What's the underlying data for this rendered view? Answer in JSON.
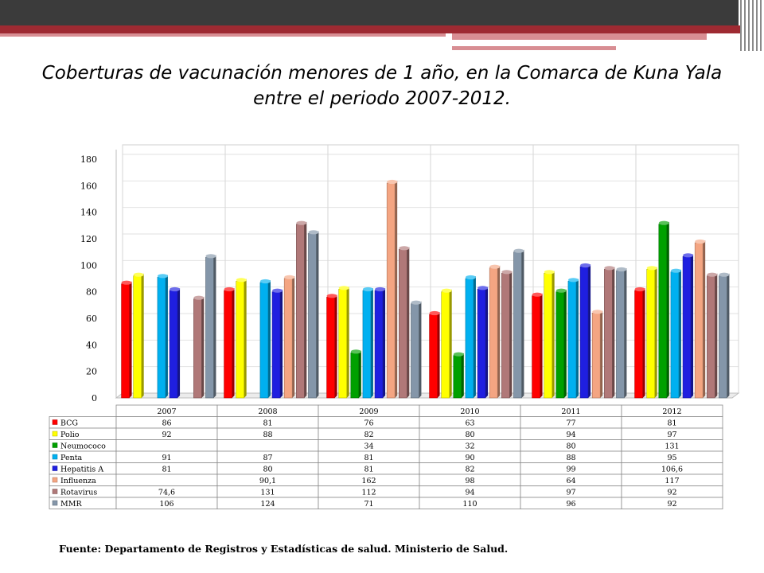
{
  "title": "Coberturas de vacunación menores de 1 año, en la Comarca de Kuna Yala entre el periodo 2007-2012.",
  "source": "Fuente: Departamento de Registros y Estadísticas de salud. Ministerio de Salud.",
  "colors": {
    "header_dark": "#3b3b3b",
    "accent_red": "#9e2a32",
    "accent_pink": "#d88e93"
  },
  "chart_data": {
    "type": "bar",
    "categories": [
      "2007",
      "2008",
      "2009",
      "2010",
      "2011",
      "2012"
    ],
    "ylim": [
      0,
      180
    ],
    "yticks": [
      "0",
      "20",
      "40",
      "60",
      "80",
      "100",
      "120",
      "140",
      "160",
      "180"
    ],
    "grid": true,
    "legend": "data-table-below",
    "series": [
      {
        "name": "BCG",
        "color": "#ff0000",
        "values": [
          86,
          81,
          76,
          63,
          77,
          81
        ],
        "labels": [
          "86",
          "81",
          "76",
          "63",
          "77",
          "81"
        ]
      },
      {
        "name": "Polio",
        "color": "#ffff00",
        "values": [
          92,
          88,
          82,
          80,
          94,
          97
        ],
        "labels": [
          "92",
          "88",
          "82",
          "80",
          "94",
          "97"
        ]
      },
      {
        "name": "Neumococo",
        "color": "#00a000",
        "values": [
          null,
          null,
          34,
          32,
          80,
          131
        ],
        "labels": [
          "",
          "",
          "34",
          "32",
          "80",
          "131"
        ]
      },
      {
        "name": "Penta",
        "color": "#00b0f0",
        "values": [
          91,
          87,
          81,
          90,
          88,
          95
        ],
        "labels": [
          "91",
          "87",
          "81",
          "90",
          "88",
          "95"
        ]
      },
      {
        "name": "Hepatitis A",
        "color": "#1f1fe0",
        "values": [
          81,
          80,
          81,
          82,
          99,
          106.6
        ],
        "labels": [
          "81",
          "80",
          "81",
          "82",
          "99",
          "106,6"
        ]
      },
      {
        "name": "Influenza",
        "color": "#f4a582",
        "values": [
          null,
          90.1,
          162,
          98,
          64,
          117
        ],
        "labels": [
          "",
          "90,1",
          "162",
          "98",
          "64",
          "117"
        ]
      },
      {
        "name": "Rotavirus",
        "color": "#b07878",
        "values": [
          74.6,
          131,
          112,
          94,
          97,
          92
        ],
        "labels": [
          "74,6",
          "131",
          "112",
          "94",
          "97",
          "92"
        ]
      },
      {
        "name": "MMR",
        "color": "#8496a9",
        "values": [
          106,
          124,
          71,
          110,
          96,
          92
        ],
        "labels": [
          "106",
          "124",
          "71",
          "110",
          "96",
          "92"
        ]
      }
    ]
  }
}
